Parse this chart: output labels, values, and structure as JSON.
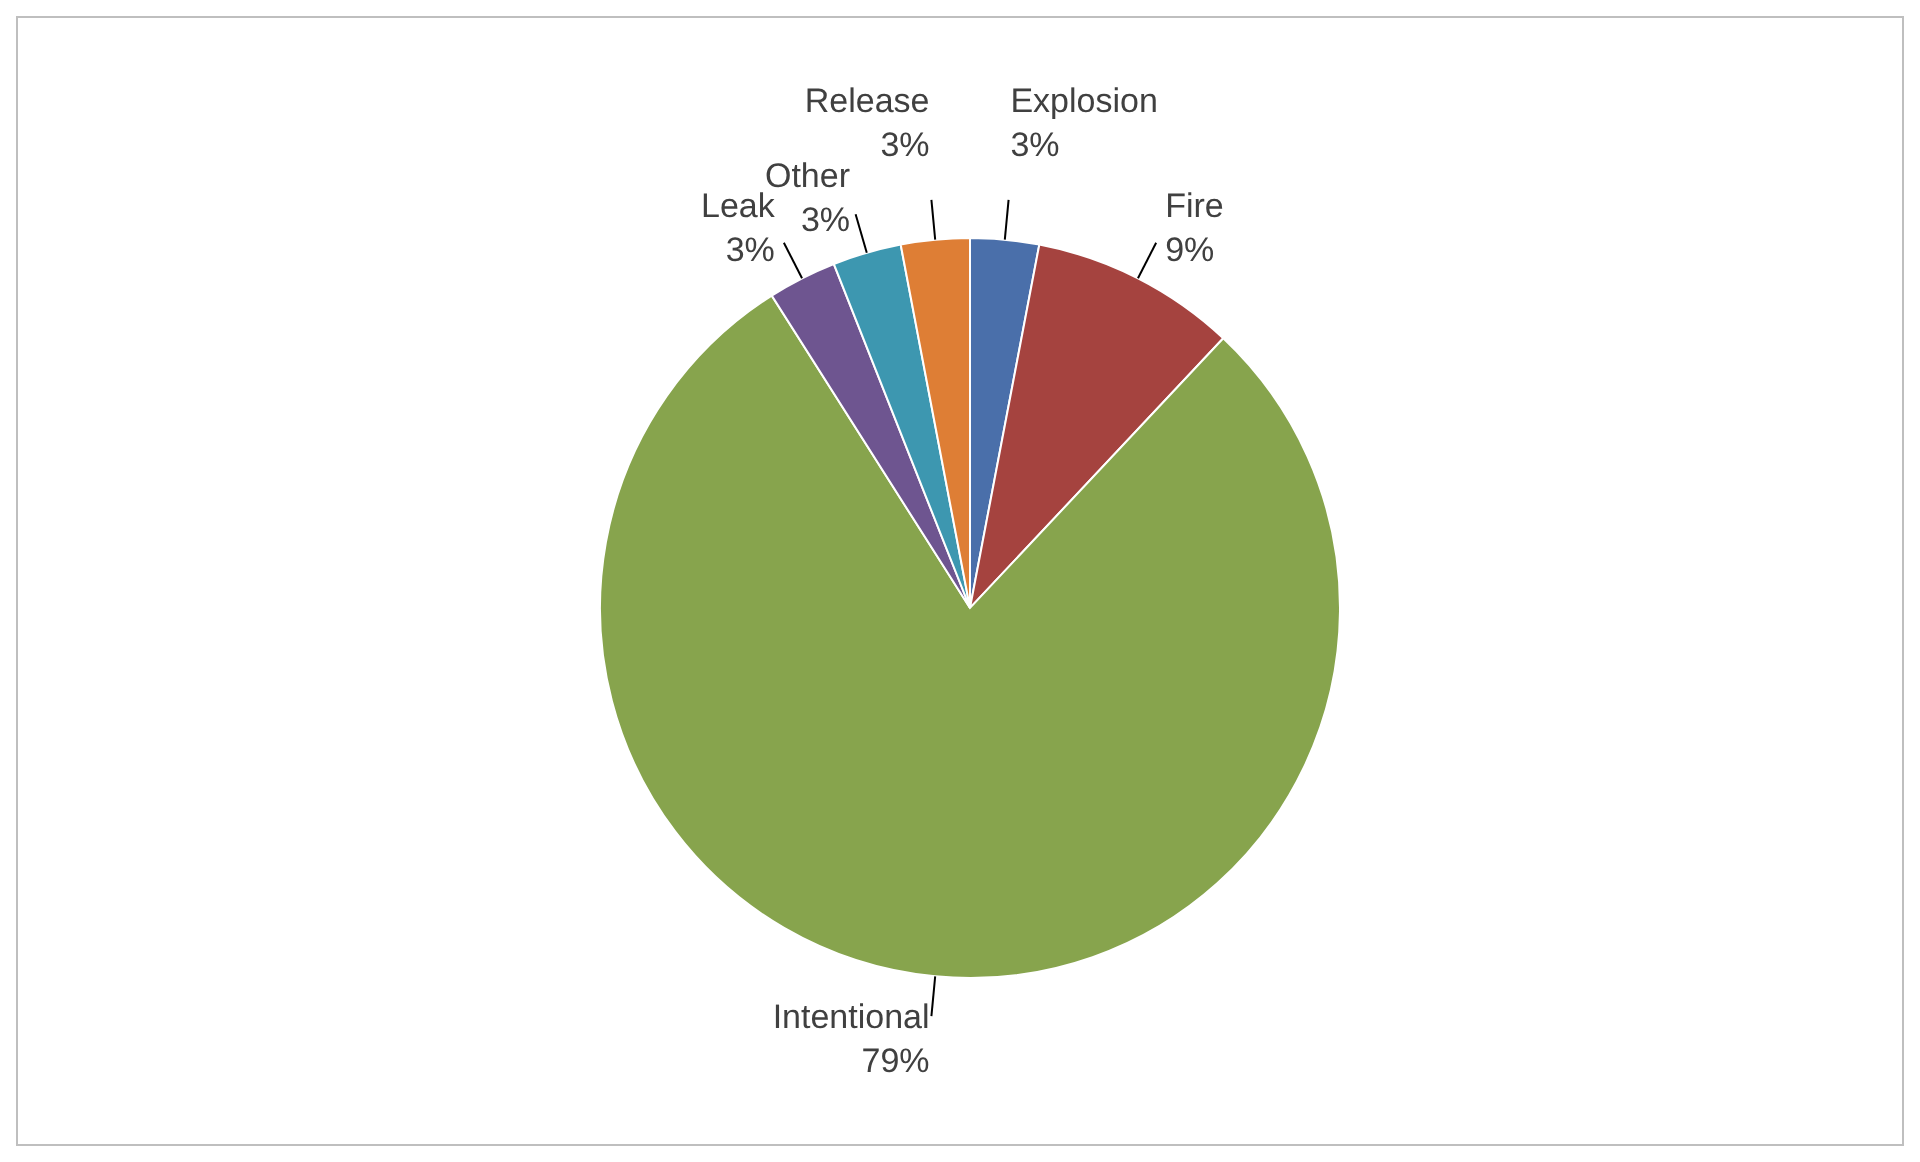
{
  "chart_data": {
    "type": "pie",
    "categories": [
      "Explosion",
      "Fire",
      "Intentional",
      "Leak",
      "Other",
      "Release"
    ],
    "values": [
      3,
      9,
      79,
      3,
      3,
      3
    ],
    "colors": [
      "#4a6faa",
      "#a5433f",
      "#87a44d",
      "#6e5590",
      "#3d97b0",
      "#de7e35"
    ],
    "value_labels": [
      "3%",
      "9%",
      "79%",
      "3%",
      "3%",
      "3%"
    ],
    "legend": false
  }
}
